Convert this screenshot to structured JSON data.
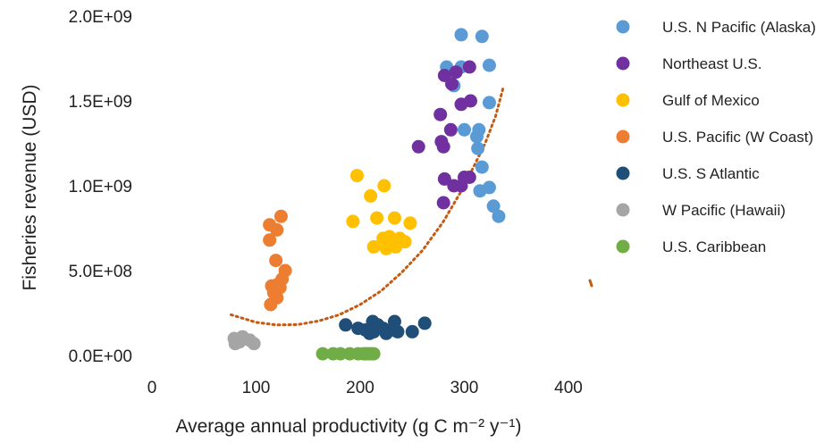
{
  "chart_data": {
    "type": "scatter",
    "title": "",
    "xlabel": "Average annual productivity (g C m⁻² y⁻¹)",
    "ylabel": "Fisheries revenue (USD)",
    "xlim": [
      0,
      400
    ],
    "ylim": [
      0,
      2000000000
    ],
    "x_ticks": [
      0,
      100,
      200,
      300,
      400
    ],
    "x_tick_labels": [
      "0",
      "100",
      "200",
      "300",
      "400"
    ],
    "y_ticks": [
      0,
      500000000,
      1000000000,
      1500000000,
      2000000000
    ],
    "y_tick_labels": [
      "0.0E+00",
      "5.0E+08",
      "1.0E+09",
      "1.5E+09",
      "2.0E+09"
    ],
    "grid": false,
    "legend_position": "right",
    "series": [
      {
        "name": "U.S. N Pacific (Alaska)",
        "color": "#5b9bd5",
        "points": [
          [
            297,
            1890000000
          ],
          [
            317,
            1880000000
          ],
          [
            283,
            1700000000
          ],
          [
            297,
            1700000000
          ],
          [
            324,
            1710000000
          ],
          [
            290,
            1590000000
          ],
          [
            324,
            1490000000
          ],
          [
            314,
            1330000000
          ],
          [
            300,
            1330000000
          ],
          [
            312,
            1290000000
          ],
          [
            313,
            1220000000
          ],
          [
            317,
            1110000000
          ],
          [
            324,
            990000000
          ],
          [
            315,
            970000000
          ],
          [
            328,
            880000000
          ],
          [
            333,
            820000000
          ]
        ]
      },
      {
        "name": "Northeast U.S.",
        "color": "#7030a0",
        "points": [
          [
            292,
            1670000000
          ],
          [
            305,
            1700000000
          ],
          [
            281,
            1650000000
          ],
          [
            288,
            1600000000
          ],
          [
            306,
            1500000000
          ],
          [
            297,
            1480000000
          ],
          [
            277,
            1420000000
          ],
          [
            287,
            1330000000
          ],
          [
            278,
            1260000000
          ],
          [
            280,
            1230000000
          ],
          [
            256,
            1230000000
          ],
          [
            300,
            1050000000
          ],
          [
            305,
            1050000000
          ],
          [
            281,
            1040000000
          ],
          [
            297,
            1000000000
          ],
          [
            290,
            1000000000
          ],
          [
            280,
            900000000
          ]
        ]
      },
      {
        "name": "Gulf of Mexico",
        "color": "#ffc000",
        "points": [
          [
            197,
            1060000000
          ],
          [
            223,
            1000000000
          ],
          [
            210,
            940000000
          ],
          [
            193,
            790000000
          ],
          [
            216,
            810000000
          ],
          [
            233,
            810000000
          ],
          [
            248,
            780000000
          ],
          [
            228,
            700000000
          ],
          [
            222,
            690000000
          ],
          [
            238,
            690000000
          ],
          [
            243,
            670000000
          ],
          [
            213,
            640000000
          ],
          [
            225,
            630000000
          ],
          [
            234,
            640000000
          ]
        ]
      },
      {
        "name": "U.S. Pacific (W Coast)",
        "color": "#ed7d31",
        "points": [
          [
            124,
            820000000
          ],
          [
            113,
            770000000
          ],
          [
            120,
            740000000
          ],
          [
            113,
            680000000
          ],
          [
            119,
            560000000
          ],
          [
            128,
            500000000
          ],
          [
            125,
            450000000
          ],
          [
            121,
            420000000
          ],
          [
            115,
            410000000
          ],
          [
            123,
            400000000
          ],
          [
            117,
            370000000
          ],
          [
            120,
            340000000
          ],
          [
            114,
            300000000
          ]
        ]
      },
      {
        "name": "U.S. S Atlantic",
        "color": "#1f4e79",
        "points": [
          [
            186,
            180000000
          ],
          [
            212,
            200000000
          ],
          [
            217,
            180000000
          ],
          [
            233,
            200000000
          ],
          [
            262,
            190000000
          ],
          [
            198,
            160000000
          ],
          [
            205,
            150000000
          ],
          [
            222,
            160000000
          ],
          [
            230,
            150000000
          ],
          [
            213,
            140000000
          ],
          [
            236,
            140000000
          ],
          [
            250,
            140000000
          ],
          [
            225,
            130000000
          ],
          [
            209,
            130000000
          ]
        ]
      },
      {
        "name": "W Pacific (Hawaii)",
        "color": "#a5a5a5",
        "points": [
          [
            79,
            100000000
          ],
          [
            87,
            110000000
          ],
          [
            84,
            80000000
          ],
          [
            94,
            90000000
          ],
          [
            98,
            70000000
          ],
          [
            80,
            70000000
          ]
        ]
      },
      {
        "name": "U.S. Caribbean",
        "color": "#70ad47",
        "points": [
          [
            164,
            10000000
          ],
          [
            174,
            10000000
          ],
          [
            181,
            10000000
          ],
          [
            190,
            10000000
          ],
          [
            198,
            10000000
          ],
          [
            203,
            10000000
          ],
          [
            205,
            10000000
          ],
          [
            207,
            10000000
          ],
          [
            209,
            10000000
          ],
          [
            211,
            10000000
          ],
          [
            213,
            10000000
          ]
        ]
      }
    ],
    "trendline": {
      "type": "polynomial",
      "color": "#c55a11",
      "points": [
        [
          76,
          240000000
        ],
        [
          100,
          195000000
        ],
        [
          120,
          180000000
        ],
        [
          140,
          182000000
        ],
        [
          160,
          203000000
        ],
        [
          180,
          240000000
        ],
        [
          200,
          300000000
        ],
        [
          220,
          380000000
        ],
        [
          240,
          490000000
        ],
        [
          260,
          620000000
        ],
        [
          280,
          790000000
        ],
        [
          300,
          1000000000
        ],
        [
          320,
          1250000000
        ],
        [
          330,
          1410000000
        ],
        [
          337,
          1570000000
        ]
      ]
    }
  }
}
